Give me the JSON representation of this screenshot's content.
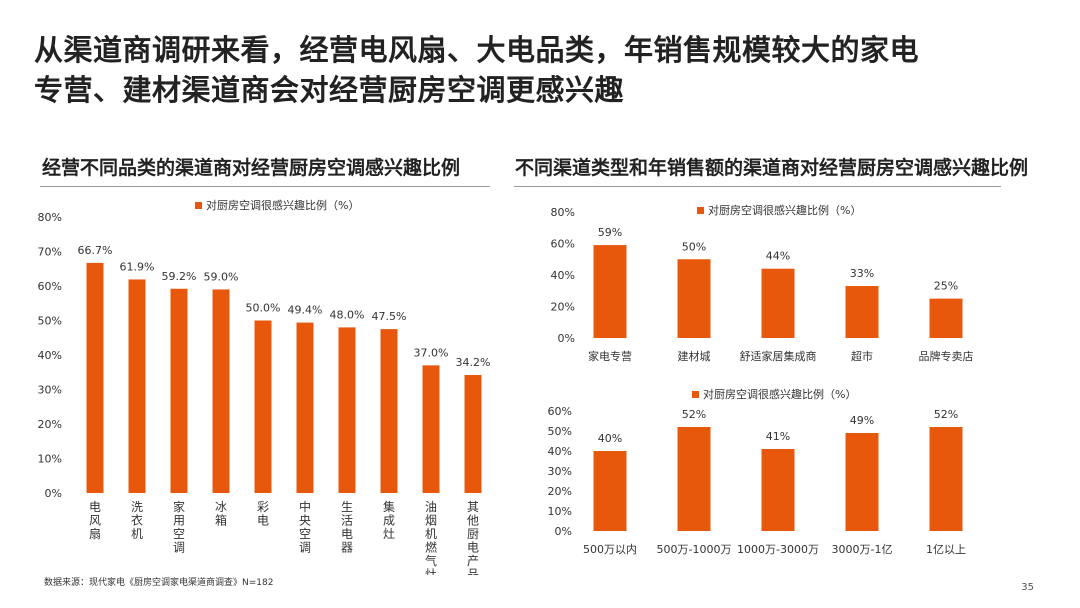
{
  "slide": {
    "title_line1": "从渠道商调研来看，经营电风扇、大电品类，年销售规模较大的家电",
    "title_line2": "专营、建材渠道商会对经营厨房空调更感兴趣",
    "left_heading": "经营不同品类的渠道商对经营厨房空调感兴趣比例",
    "right_heading": "不同渠道类型和年销售额的渠道商对经营厨房空调感兴趣比例",
    "source": "数据来源：现代家电《厨房空调家电渠道商调查》N=182",
    "page_number": "35"
  },
  "colors": {
    "bar": "#E8580C",
    "text": "#333333",
    "rule": "#9a9a9a"
  },
  "chart_data": [
    {
      "type": "bar",
      "legend": "对厨房空调很感兴趣比例（%）",
      "legend_position": "top",
      "categories": [
        "电风扇",
        "洗衣机",
        "家用空调",
        "冰箱",
        "彩电",
        "中央空调",
        "生活电器",
        "集成灶",
        "油烟机燃气灶",
        "其他厨电产品"
      ],
      "values": [
        66.7,
        61.9,
        59.2,
        59.0,
        50.0,
        49.4,
        48.0,
        47.5,
        37.0,
        34.2
      ],
      "value_labels": [
        "66.7%",
        "61.9%",
        "59.2%",
        "59.0%",
        "50.0%",
        "49.4%",
        "48.0%",
        "47.5%",
        "37.0%",
        "34.2%"
      ],
      "yticks": [
        "0%",
        "10%",
        "20%",
        "30%",
        "40%",
        "50%",
        "60%",
        "70%",
        "80%"
      ],
      "ylim": [
        0,
        80
      ],
      "grid": false
    },
    {
      "type": "bar",
      "legend": "对厨房空调很感兴趣比例（%）",
      "legend_position": "top",
      "categories": [
        "家电专营",
        "建材城",
        "舒适家居集成商",
        "超市",
        "品牌专卖店"
      ],
      "values": [
        59,
        50,
        44,
        33,
        25
      ],
      "value_labels": [
        "59%",
        "50%",
        "44%",
        "33%",
        "25%"
      ],
      "yticks": [
        "0%",
        "20%",
        "40%",
        "60%",
        "80%"
      ],
      "ylim": [
        0,
        80
      ],
      "grid": false
    },
    {
      "type": "bar",
      "legend": "对厨房空调很感兴趣比例（%）",
      "legend_position": "top",
      "categories": [
        "500万以内",
        "500万-1000万",
        "1000万-3000万",
        "3000万-1亿",
        "1亿以上"
      ],
      "values": [
        40,
        52,
        41,
        49,
        52
      ],
      "value_labels": [
        "40%",
        "52%",
        "41%",
        "49%",
        "52%"
      ],
      "yticks": [
        "0%",
        "10%",
        "20%",
        "30%",
        "40%",
        "50%",
        "60%"
      ],
      "ylim": [
        0,
        60
      ],
      "grid": false
    }
  ]
}
